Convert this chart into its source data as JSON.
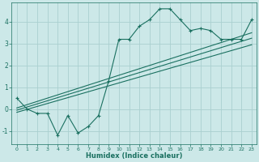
{
  "xlabel": "Humidex (Indice chaleur)",
  "ylabel": "",
  "bg_color": "#cce8e8",
  "grid_color": "#aad0d0",
  "line_color": "#1a7060",
  "xlim": [
    -0.5,
    23.5
  ],
  "ylim": [
    -1.6,
    4.9
  ],
  "x_ticks": [
    0,
    1,
    2,
    3,
    4,
    5,
    6,
    7,
    8,
    9,
    10,
    11,
    12,
    13,
    14,
    15,
    16,
    17,
    18,
    19,
    20,
    21,
    22,
    23
  ],
  "y_ticks": [
    -1,
    0,
    1,
    2,
    3,
    4
  ],
  "zigzag_x": [
    0,
    1,
    2,
    3,
    4,
    5,
    6,
    7,
    8,
    9,
    10,
    11,
    12,
    13,
    14,
    15,
    16,
    17,
    18,
    19,
    20,
    21,
    22,
    23
  ],
  "zigzag_y": [
    0.5,
    0.0,
    -0.2,
    -0.2,
    -1.2,
    -0.3,
    -1.1,
    -0.8,
    -0.3,
    1.3,
    3.2,
    3.2,
    3.8,
    4.1,
    4.6,
    4.6,
    4.1,
    3.6,
    3.7,
    3.6,
    3.2,
    3.2,
    3.2,
    4.1
  ],
  "line1_x": [
    0,
    23
  ],
  "line1_y": [
    -0.05,
    3.25
  ],
  "line2_x": [
    0,
    23
  ],
  "line2_y": [
    -0.15,
    2.95
  ],
  "line3_x": [
    0,
    23
  ],
  "line3_y": [
    0.05,
    3.5
  ]
}
